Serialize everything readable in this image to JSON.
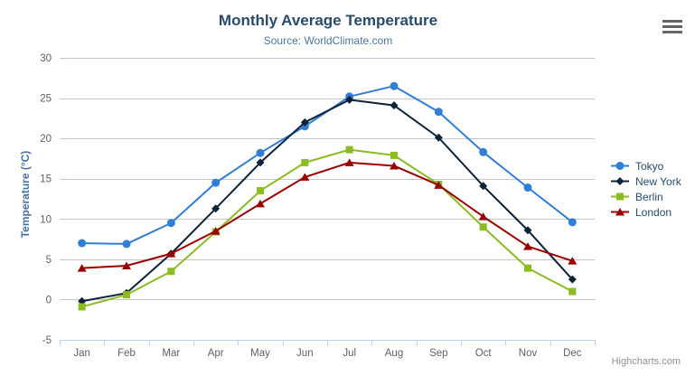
{
  "chart_data": {
    "type": "line",
    "title": "Monthly Average Temperature",
    "subtitle": "Source: WorldClimate.com",
    "categories": [
      "Jan",
      "Feb",
      "Mar",
      "Apr",
      "May",
      "Jun",
      "Jul",
      "Aug",
      "Sep",
      "Oct",
      "Nov",
      "Dec"
    ],
    "series": [
      {
        "name": "Tokyo",
        "color": "#2f7ed8",
        "marker": "circle",
        "values": [
          7.0,
          6.9,
          9.5,
          14.5,
          18.2,
          21.5,
          25.2,
          26.5,
          23.3,
          18.3,
          13.9,
          9.6
        ]
      },
      {
        "name": "New York",
        "color": "#0d233a",
        "marker": "diamond",
        "values": [
          -0.2,
          0.8,
          5.7,
          11.3,
          17.0,
          22.0,
          24.8,
          24.1,
          20.1,
          14.1,
          8.6,
          2.5
        ]
      },
      {
        "name": "Berlin",
        "color": "#8bbc21",
        "marker": "square",
        "values": [
          -0.9,
          0.6,
          3.5,
          8.4,
          13.5,
          17.0,
          18.6,
          17.9,
          14.3,
          9.0,
          3.9,
          1.0
        ]
      },
      {
        "name": "London",
        "color": "#9a0000",
        "marker": "triangle",
        "values": [
          3.9,
          4.2,
          5.7,
          8.5,
          11.9,
          15.2,
          17.0,
          16.6,
          14.2,
          10.3,
          6.6,
          4.8
        ]
      }
    ],
    "xlabel": "",
    "ylabel": "Temperature (°C)",
    "ylim": [
      -5,
      30
    ],
    "ytick_step": 5,
    "yticks": [
      -5,
      0,
      5,
      10,
      15,
      20,
      25,
      30
    ],
    "grid": true,
    "legend_position": "right"
  },
  "credit": "Highcharts.com",
  "menu_icon": "hamburger-menu",
  "colors": {
    "title": "#274b6d",
    "subtitle": "#4d759e",
    "axis_labels": "#606060",
    "y_axis_title": "#4572a7",
    "gridline": "#c6c6c6",
    "axis_line": "#c0d0e0",
    "legend_text": "#274b6d",
    "credit": "#909090",
    "menu_icon": "#666666",
    "background": "#ffffff"
  }
}
